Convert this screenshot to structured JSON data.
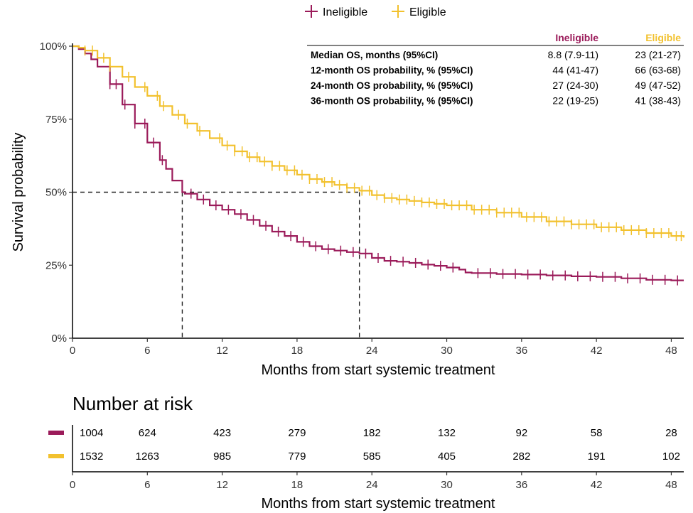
{
  "chart_data": {
    "type": "line",
    "subtype": "kaplan-meier",
    "ylabel": "Survival probability",
    "xlabel": "Months from start systemic treatment",
    "xlim": [
      0,
      49
    ],
    "ylim": [
      0,
      1
    ],
    "x_ticks": [
      0,
      6,
      12,
      18,
      24,
      30,
      36,
      42,
      48
    ],
    "y_ticks": [
      {
        "value": 0,
        "label": "0%"
      },
      {
        "value": 0.25,
        "label": "25%"
      },
      {
        "value": 0.5,
        "label": "50%"
      },
      {
        "value": 0.75,
        "label": "75%"
      },
      {
        "value": 1,
        "label": "100%"
      }
    ],
    "grid": false,
    "legend_position": "top",
    "series": [
      {
        "name": "Ineligible",
        "color": "#9B1B5A",
        "x": [
          0,
          0.5,
          1,
          1.5,
          2,
          3,
          4,
          5,
          6,
          7,
          7.5,
          8,
          8.8,
          9,
          10,
          11,
          12,
          13,
          14,
          15,
          16,
          17,
          18,
          19,
          20,
          21,
          22,
          23,
          24,
          25,
          26,
          27,
          28,
          29,
          30,
          31,
          31.5,
          32,
          34,
          36,
          38,
          40,
          42,
          44,
          46,
          48,
          49
        ],
        "y": [
          1.0,
          0.99,
          0.975,
          0.955,
          0.93,
          0.87,
          0.8,
          0.735,
          0.67,
          0.61,
          0.58,
          0.54,
          0.5,
          0.495,
          0.475,
          0.455,
          0.44,
          0.425,
          0.405,
          0.385,
          0.365,
          0.35,
          0.33,
          0.315,
          0.305,
          0.3,
          0.295,
          0.29,
          0.275,
          0.265,
          0.262,
          0.258,
          0.252,
          0.248,
          0.242,
          0.235,
          0.225,
          0.223,
          0.22,
          0.218,
          0.215,
          0.212,
          0.21,
          0.205,
          0.2,
          0.198,
          0.198
        ],
        "censor_x": [
          3.0,
          3.5,
          4.2,
          5.0,
          5.8,
          6.5,
          7.2,
          9.5,
          10.5,
          11.5,
          12.5,
          13.5,
          14.5,
          15.5,
          16.5,
          17.5,
          18.5,
          19.5,
          20.5,
          21.5,
          22.5,
          23.5,
          24.5,
          25.5,
          26.5,
          27.5,
          28.5,
          29.5,
          30.5,
          32.5,
          33.5,
          34.5,
          35.5,
          36.5,
          37.5,
          38.5,
          39.5,
          40.5,
          41.5,
          42.5,
          43.5,
          44.5,
          45.5,
          46.5,
          47.5,
          48.5
        ],
        "median_months": 8.8
      },
      {
        "name": "Eligible",
        "color": "#F2C12E",
        "x": [
          0,
          0.5,
          1,
          2,
          3,
          4,
          5,
          6,
          7,
          8,
          9,
          10,
          11,
          12,
          13,
          14,
          15,
          16,
          17,
          18,
          19,
          20,
          21,
          22,
          23,
          24,
          25,
          26,
          27,
          28,
          29,
          30,
          32,
          34,
          36,
          38,
          40,
          42,
          44,
          46,
          48,
          49
        ],
        "y": [
          1.0,
          0.995,
          0.985,
          0.96,
          0.93,
          0.895,
          0.86,
          0.83,
          0.795,
          0.765,
          0.735,
          0.71,
          0.685,
          0.66,
          0.64,
          0.62,
          0.605,
          0.59,
          0.575,
          0.56,
          0.545,
          0.535,
          0.525,
          0.515,
          0.505,
          0.49,
          0.48,
          0.475,
          0.47,
          0.465,
          0.46,
          0.455,
          0.44,
          0.43,
          0.415,
          0.4,
          0.39,
          0.38,
          0.37,
          0.36,
          0.35,
          0.345
        ],
        "censor_x": [
          1.0,
          1.6,
          2.5,
          3.0,
          4.5,
          5.8,
          6.8,
          7.3,
          8.5,
          9.2,
          10.2,
          11.8,
          12.4,
          13.0,
          13.6,
          14.2,
          14.8,
          15.4,
          16.0,
          16.6,
          17.2,
          17.8,
          18.4,
          19.0,
          19.6,
          20.2,
          20.8,
          21.4,
          22.0,
          22.6,
          23.2,
          23.8,
          24.4,
          25.0,
          25.6,
          26.2,
          26.8,
          27.4,
          28.0,
          28.6,
          29.2,
          29.8,
          30.4,
          31.0,
          31.6,
          32.2,
          32.8,
          33.4,
          34.0,
          34.6,
          35.2,
          35.8,
          36.4,
          37.0,
          37.6,
          38.2,
          38.8,
          39.4,
          40.0,
          40.6,
          41.2,
          41.8,
          42.4,
          43.0,
          43.6,
          44.2,
          44.8,
          45.4,
          46.0,
          46.6,
          47.2,
          47.8,
          48.4,
          48.8
        ],
        "median_months": 23
      }
    ],
    "median_reference": {
      "y": 0.5,
      "x": [
        8.8,
        23
      ]
    },
    "stats_table": {
      "columns": [
        "Ineligible",
        "Eligible"
      ],
      "rows": [
        {
          "label": "Median OS, months (95%CI)",
          "values": [
            "8.8 (7.9-11)",
            "23 (21-27)"
          ]
        },
        {
          "label": "12-month OS probability, % (95%CI)",
          "values": [
            "44 (41-47)",
            "66 (63-68)"
          ]
        },
        {
          "label": "24-month OS probability, % (95%CI)",
          "values": [
            "27 (24-30)",
            "49 (47-52)"
          ]
        },
        {
          "label": "36-month OS probability, % (95%CI)",
          "values": [
            "22 (19-25)",
            "41 (38-43)"
          ]
        }
      ]
    },
    "risk_table": {
      "title": "Number at risk",
      "xlabel": "Months from start systemic treatment",
      "times": [
        0,
        6,
        12,
        18,
        24,
        30,
        36,
        42,
        48
      ],
      "rows": [
        {
          "series": "Ineligible",
          "color": "#9B1B5A",
          "values": [
            1004,
            624,
            423,
            279,
            182,
            132,
            92,
            58,
            28
          ]
        },
        {
          "series": "Eligible",
          "color": "#F2C12E",
          "values": [
            1532,
            1263,
            985,
            779,
            585,
            405,
            282,
            191,
            102
          ]
        }
      ]
    }
  }
}
